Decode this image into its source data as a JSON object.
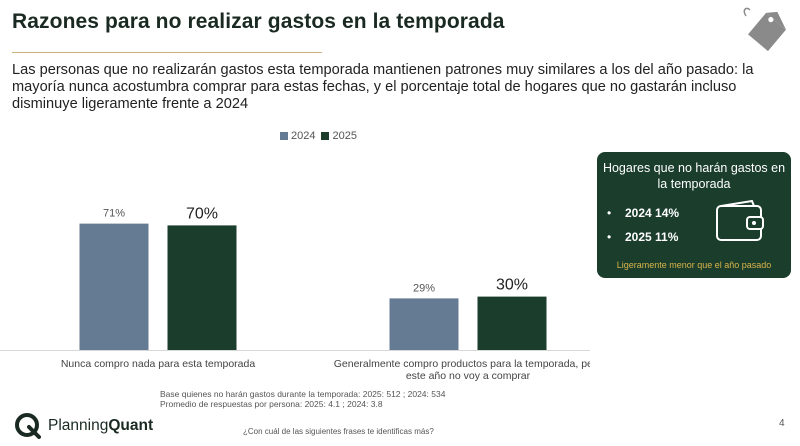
{
  "title": "Razones para no realizar gastos en la temporada",
  "subtitle": "Las personas que no realizarán gastos esta temporada mantienen patrones muy similares a los del año pasado: la mayoría nunca acostumbra comprar para estas fechas, y el porcentaje total de hogares que no gastarán incluso disminuye ligeramente frente a 2024",
  "colors": {
    "s2024": "#647b93",
    "s2025": "#1a3d2c",
    "accent": "#d9b44a",
    "rule": "#c9b27a"
  },
  "chart_data": {
    "type": "bar",
    "categories": [
      "Nunca compro nada para esta temporada",
      "Generalmente compro productos para la temporada, pero este año no voy a comprar"
    ],
    "category_lines": [
      [
        "Nunca compro nada para esta temporada"
      ],
      [
        "Generalmente compro productos para la temporada, pero",
        "este año no voy a comprar"
      ]
    ],
    "series": [
      {
        "name": "2024",
        "values": [
          71,
          29
        ],
        "labels": [
          "71%",
          "29%"
        ]
      },
      {
        "name": "2025",
        "values": [
          70,
          30
        ],
        "labels": [
          "70%",
          "30%"
        ]
      }
    ],
    "ylim": [
      0,
      100
    ],
    "legend": "top-center",
    "question": "¿Con cuál de las siguientes frases te identificas más?"
  },
  "legend": {
    "items": [
      "2024",
      "2025"
    ]
  },
  "panel": {
    "title": "Hogares que no harán gastos en la temporada",
    "bullets": [
      {
        "year": "2024",
        "value": "14%"
      },
      {
        "year": "2025",
        "value": "11%"
      }
    ],
    "bullet_char": "•",
    "note": "Ligeramente menor que el año pasado"
  },
  "footnotes": [
    "Base quienes no harán gastos durante la temporada: 2025: 512 ; 2024: 534",
    "Promedio de respuestas por persona: 2025: 4.1 ; 2024: 3.8"
  ],
  "brand": {
    "name_light": "Planning",
    "name_bold": "Quant"
  },
  "page_number": "4",
  "icons": {
    "tag": "price-tag-icon",
    "wallet": "wallet-icon",
    "logo": "planningquant-logo-icon"
  }
}
